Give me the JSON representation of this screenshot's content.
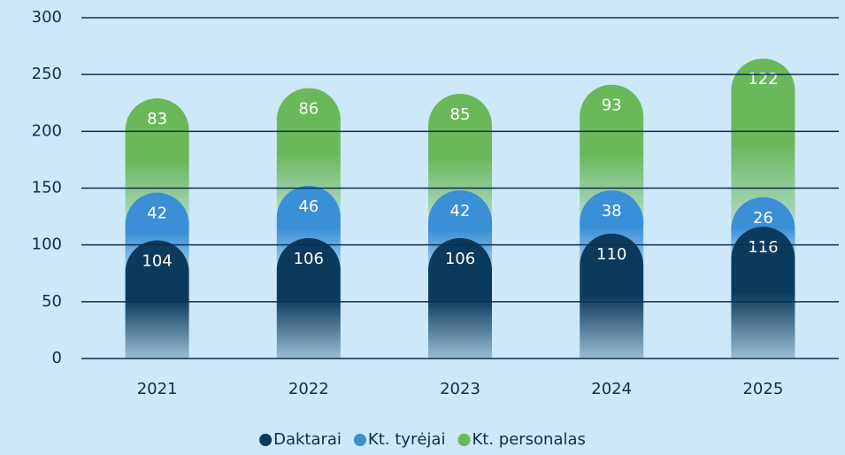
{
  "chart_data": {
    "type": "bar",
    "stacked": true,
    "categories": [
      "2021",
      "2022",
      "2023",
      "2024",
      "2025"
    ],
    "series": [
      {
        "name": "Daktarai",
        "color": "#0b3a5c",
        "values": [
          104,
          106,
          106,
          110,
          116
        ]
      },
      {
        "name": "Kt. tyrėjai",
        "color": "#3a8fd6",
        "values": [
          42,
          46,
          42,
          38,
          26
        ]
      },
      {
        "name": "Kt. personalas",
        "color": "#6ab85a",
        "values": [
          83,
          86,
          85,
          93,
          122
        ]
      }
    ],
    "ylim": [
      0,
      300
    ],
    "yticks": [
      0,
      50,
      100,
      150,
      200,
      250,
      300
    ],
    "grid": true,
    "legend": "bottom"
  }
}
